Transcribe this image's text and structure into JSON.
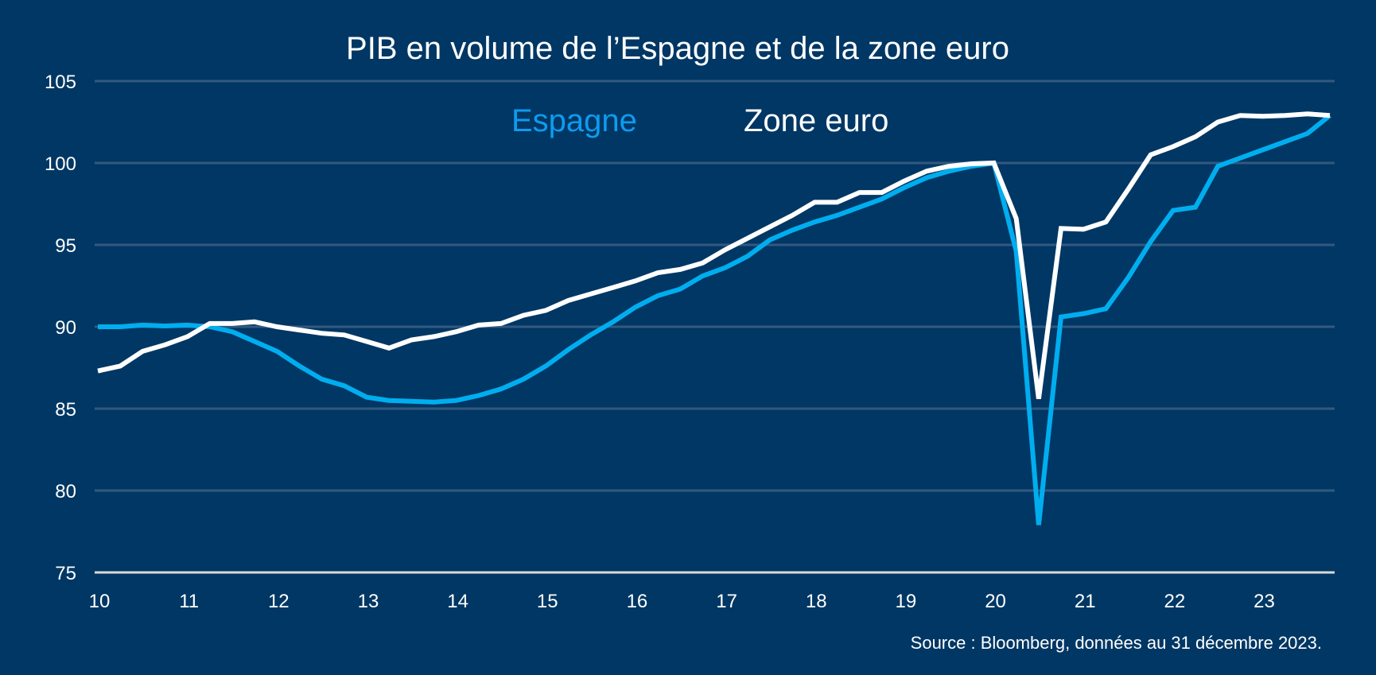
{
  "chart_data": {
    "type": "line",
    "title": "PIB en volume de l’Espagne et de la zone euro",
    "xlabel": "",
    "ylabel": "",
    "ylim": [
      75,
      105
    ],
    "yticks": [
      "75",
      "80",
      "85",
      "90",
      "95",
      "100",
      "105"
    ],
    "ytick_values": [
      75,
      80,
      85,
      90,
      95,
      100,
      105
    ],
    "xticks": [
      "10",
      "11",
      "12",
      "13",
      "14",
      "15",
      "16",
      "17",
      "18",
      "19",
      "20",
      "21",
      "22",
      "23"
    ],
    "x_start": "2010Q1",
    "x_end": "2023Q4",
    "frequency": "quarterly",
    "grid": true,
    "legend_position": "top-center",
    "series": [
      {
        "name": "Espagne",
        "color": "#00aeef",
        "legend_color": "#0d9bef",
        "values": [
          90.0,
          90.0,
          90.1,
          90.05,
          90.1,
          90.0,
          89.7,
          89.1,
          88.5,
          87.6,
          86.8,
          86.4,
          85.7,
          85.5,
          85.45,
          85.4,
          85.5,
          85.8,
          86.2,
          86.8,
          87.6,
          88.6,
          89.5,
          90.3,
          91.2,
          91.9,
          92.3,
          93.1,
          93.6,
          94.3,
          95.3,
          95.9,
          96.4,
          96.8,
          97.3,
          97.8,
          98.5,
          99.1,
          99.5,
          99.8,
          100.0,
          94.6,
          77.9,
          90.6,
          90.8,
          91.1,
          93.0,
          95.2,
          97.1,
          97.3,
          99.8,
          100.3,
          100.8,
          101.3,
          101.8,
          102.9
        ]
      },
      {
        "name": "Zone euro",
        "color": "#ffffff",
        "legend_color": "#ffffff",
        "values": [
          87.3,
          87.6,
          88.5,
          88.9,
          89.4,
          90.2,
          90.2,
          90.3,
          90.0,
          89.8,
          89.6,
          89.5,
          89.1,
          88.7,
          89.2,
          89.4,
          89.7,
          90.1,
          90.2,
          90.7,
          91.0,
          91.6,
          92.0,
          92.4,
          92.8,
          93.3,
          93.5,
          93.9,
          94.7,
          95.4,
          96.1,
          96.8,
          97.6,
          97.6,
          98.2,
          98.2,
          98.9,
          99.5,
          99.8,
          99.95,
          100.0,
          96.6,
          85.6,
          96.0,
          95.95,
          96.4,
          98.4,
          100.5,
          101.0,
          101.6,
          102.5,
          102.9,
          102.85,
          102.9,
          103.0,
          102.9
        ]
      }
    ],
    "source": "Source : Bloomberg, données au 31 décembre 2023."
  },
  "colors": {
    "background": "#003764",
    "grid": "#33587f",
    "axis": "#d9d9d9"
  }
}
